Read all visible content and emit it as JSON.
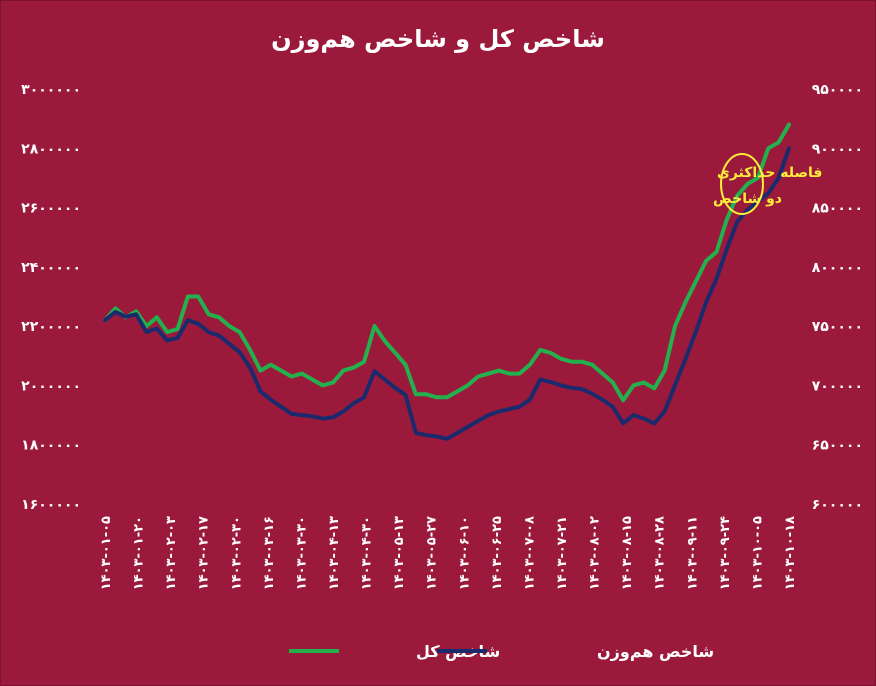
{
  "chart_data": {
    "type": "line",
    "title": "شاخص کل و شاخص هم‌وزن",
    "x_tick_labels": [
      "۱۴۰۳-۰۱-۰۵",
      "۱۴۰۳-۰۱-۲۰",
      "۱۴۰۳-۰۲-۰۳",
      "۱۴۰۳-۰۲-۱۷",
      "۱۴۰۳-۰۲-۳۰",
      "۱۴۰۳-۰۳-۱۶",
      "۱۴۰۳-۰۳-۳۰",
      "۱۴۰۳-۰۴-۱۳",
      "۱۴۰۳-۰۴-۳۰",
      "۱۴۰۳-۰۵-۱۳",
      "۱۴۰۳-۰۵-۲۷",
      "۱۴۰۳-۰۶-۱۰",
      "۱۴۰۳-۰۶-۲۵",
      "۱۴۰۳-۰۷-۰۸",
      "۱۴۰۳-۰۷-۲۱",
      "۱۴۰۳-۰۸-۰۲",
      "۱۴۰۳-۰۸-۱۵",
      "۱۴۰۳-۰۸-۲۸",
      "۱۴۰۳-۰۹-۱۱",
      "۱۴۰۳-۰۹-۲۴",
      "۱۴۰۳-۱۰-۰۵",
      "۱۴۰۳-۱۰-۱۸"
    ],
    "y_left": {
      "min": 1600000,
      "max": 3000000,
      "ticks": [
        "۱۶۰۰۰۰۰",
        "۱۸۰۰۰۰۰",
        "۲۰۰۰۰۰۰",
        "۲۲۰۰۰۰۰",
        "۲۴۰۰۰۰۰",
        "۲۶۰۰۰۰۰",
        "۲۸۰۰۰۰۰",
        "۳۰۰۰۰۰۰"
      ]
    },
    "y_right": {
      "min": 600000,
      "max": 950000,
      "ticks": [
        "۶۰۰۰۰۰",
        "۶۵۰۰۰۰",
        "۷۰۰۰۰۰",
        "۷۵۰۰۰۰",
        "۸۰۰۰۰۰",
        "۸۵۰۰۰۰",
        "۹۰۰۰۰۰",
        "۹۵۰۰۰۰"
      ]
    },
    "series": [
      {
        "name": "شاخص کل",
        "axis": "left",
        "color": "#22b14c",
        "values": [
          2220000,
          2260000,
          2230000,
          2250000,
          2200000,
          2230000,
          2180000,
          2190000,
          2300000,
          2300000,
          2240000,
          2230000,
          2200000,
          2180000,
          2120000,
          2050000,
          2070000,
          2050000,
          2030000,
          2040000,
          2020000,
          2000000,
          2010000,
          2050000,
          2060000,
          2080000,
          2200000,
          2150000,
          2110000,
          2070000,
          1970000,
          1970000,
          1960000,
          1960000,
          1980000,
          2000000,
          2030000,
          2040000,
          2050000,
          2040000,
          2040000,
          2070000,
          2120000,
          2110000,
          2090000,
          2080000,
          2080000,
          2070000,
          2040000,
          2010000,
          1950000,
          2000000,
          2010000,
          1990000,
          2050000,
          2200000,
          2280000,
          2350000,
          2420000,
          2450000,
          2560000,
          2640000,
          2680000,
          2700000,
          2800000,
          2820000,
          2880000
        ],
        "smoothed_note": ""
      },
      {
        "name": "شاخص هم‌وزن",
        "axis": "right",
        "color": "#1a2a6c",
        "values": [
          755000,
          762000,
          758000,
          760000,
          745000,
          748000,
          738000,
          740000,
          755000,
          752000,
          745000,
          742000,
          735000,
          728000,
          715000,
          695000,
          688000,
          682000,
          676000,
          675000,
          674000,
          672000,
          673000,
          678000,
          685000,
          690000,
          712000,
          705000,
          698000,
          692000,
          660000,
          658000,
          657000,
          655000,
          660000,
          665000,
          670000,
          675000,
          678000,
          680000,
          682000,
          688000,
          705000,
          703000,
          700000,
          698000,
          697000,
          693000,
          688000,
          682000,
          668000,
          675000,
          672000,
          668000,
          678000,
          700000,
          722000,
          745000,
          770000,
          790000,
          815000,
          838000,
          848000,
          855000,
          862000,
          875000,
          900000
        ]
      }
    ],
    "annotation": {
      "line1": "فاصله حداکثری",
      "line2": "دو شاخص"
    },
    "legend": [
      "شاخص کل",
      "شاخص هم‌وزن"
    ],
    "grid": false,
    "legend_position": "bottom"
  },
  "colors": {
    "background": "#9b1a3c",
    "total": "#22b14c",
    "equal": "#1a2a6c",
    "annotation": "#ffeb3b",
    "text": "#ffffff"
  }
}
